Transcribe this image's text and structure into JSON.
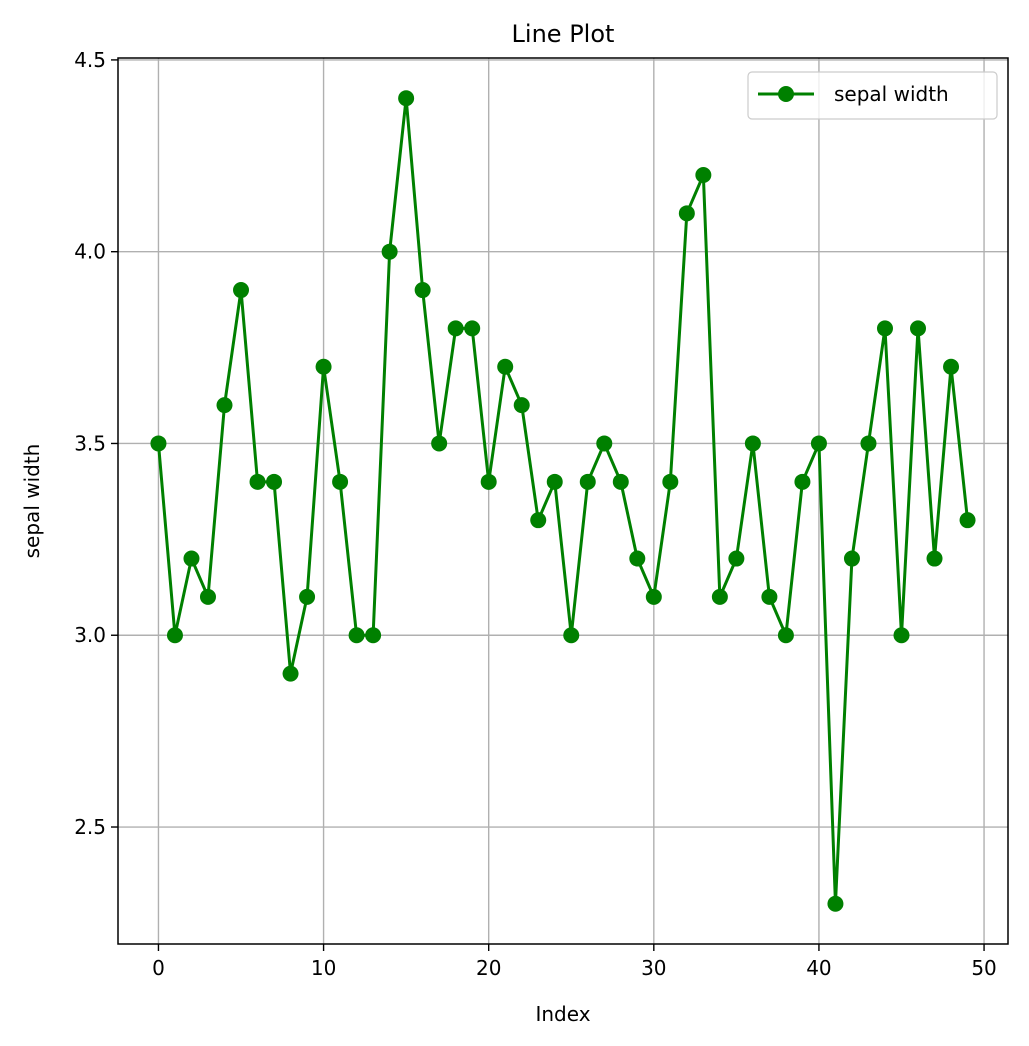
{
  "chart_data": {
    "type": "line",
    "title": "Line Plot",
    "xlabel": "Index",
    "ylabel": "sepal width",
    "xlim": [
      -2.45,
      51.45
    ],
    "ylim": [
      2.195,
      4.505
    ],
    "xticks": [
      0,
      10,
      20,
      30,
      40,
      50
    ],
    "yticks": [
      2.5,
      3.0,
      3.5,
      4.0,
      4.5
    ],
    "ytick_labels": [
      "2.5",
      "3.0",
      "3.5",
      "4.0",
      "4.5"
    ],
    "xtick_labels": [
      "0",
      "10",
      "20",
      "30",
      "40",
      "50"
    ],
    "grid": true,
    "legend_position": "upper right",
    "series": [
      {
        "name": "sepal width",
        "color": "#008000",
        "marker": "circle",
        "x": [
          0,
          1,
          2,
          3,
          4,
          5,
          6,
          7,
          8,
          9,
          10,
          11,
          12,
          13,
          14,
          15,
          16,
          17,
          18,
          19,
          20,
          21,
          22,
          23,
          24,
          25,
          26,
          27,
          28,
          29,
          30,
          31,
          32,
          33,
          34,
          35,
          36,
          37,
          38,
          39,
          40,
          41,
          42,
          43,
          44,
          45,
          46,
          47,
          48,
          49
        ],
        "values": [
          3.5,
          3.0,
          3.2,
          3.1,
          3.6,
          3.9,
          3.4,
          3.4,
          2.9,
          3.1,
          3.7,
          3.4,
          3.0,
          3.0,
          4.0,
          4.4,
          3.9,
          3.5,
          3.8,
          3.8,
          3.4,
          3.7,
          3.6,
          3.3,
          3.4,
          3.0,
          3.4,
          3.5,
          3.4,
          3.2,
          3.1,
          3.4,
          4.1,
          4.2,
          3.1,
          3.2,
          3.5,
          3.1,
          3.0,
          3.4,
          3.5,
          2.3,
          3.2,
          3.5,
          3.8,
          3.0,
          3.8,
          3.2,
          3.7,
          3.3
        ]
      }
    ]
  }
}
